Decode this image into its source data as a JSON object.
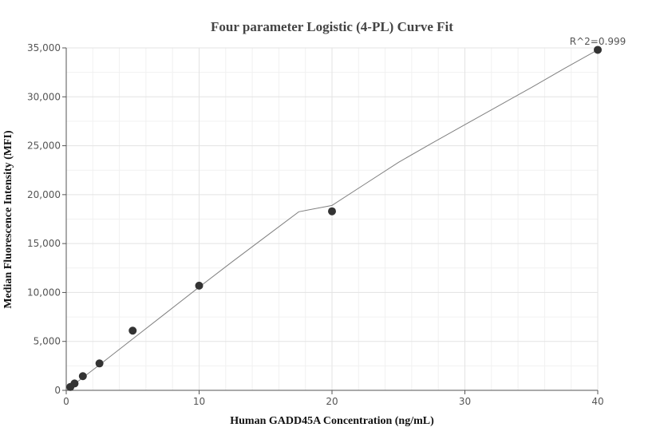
{
  "chart_data": {
    "type": "scatter",
    "title": "Four parameter Logistic (4-PL) Curve Fit",
    "xlabel": "Human GADD45A Concentration (ng/mL)",
    "ylabel": "Median Fluorescence Intensity (MFI)",
    "xlim": [
      0,
      40
    ],
    "ylim": [
      0,
      35000
    ],
    "x_ticks": [
      0,
      10,
      20,
      30,
      40
    ],
    "y_ticks": [
      0,
      5000,
      10000,
      15000,
      20000,
      25000,
      30000,
      35000
    ],
    "x_tick_labels": [
      "0",
      "10",
      "20",
      "30",
      "40"
    ],
    "y_tick_labels": [
      "0",
      "5,000",
      "10,000",
      "15,000",
      "20,000",
      "25,000",
      "30,000",
      "35,000"
    ],
    "grid": true,
    "points": {
      "x": [
        0.3125,
        0.625,
        1.25,
        2.5,
        5,
        10,
        20,
        40
      ],
      "y": [
        350,
        700,
        1450,
        2750,
        6100,
        10700,
        18300,
        34800
      ],
      "color": "#333333"
    },
    "fit_curve": {
      "x": [
        0,
        2.5,
        5,
        7.5,
        10,
        12.5,
        15,
        17.5,
        20,
        22.5,
        25,
        27.5,
        30,
        32.5,
        35,
        37.5,
        40
      ],
      "y": [
        0,
        2600,
        5250,
        7900,
        10550,
        13150,
        15700,
        18250,
        18900,
        21100,
        23300,
        25250,
        27150,
        29050,
        30950,
        32900,
        34800
      ],
      "color": "#808080"
    },
    "annotation": "R^2=0.999"
  }
}
